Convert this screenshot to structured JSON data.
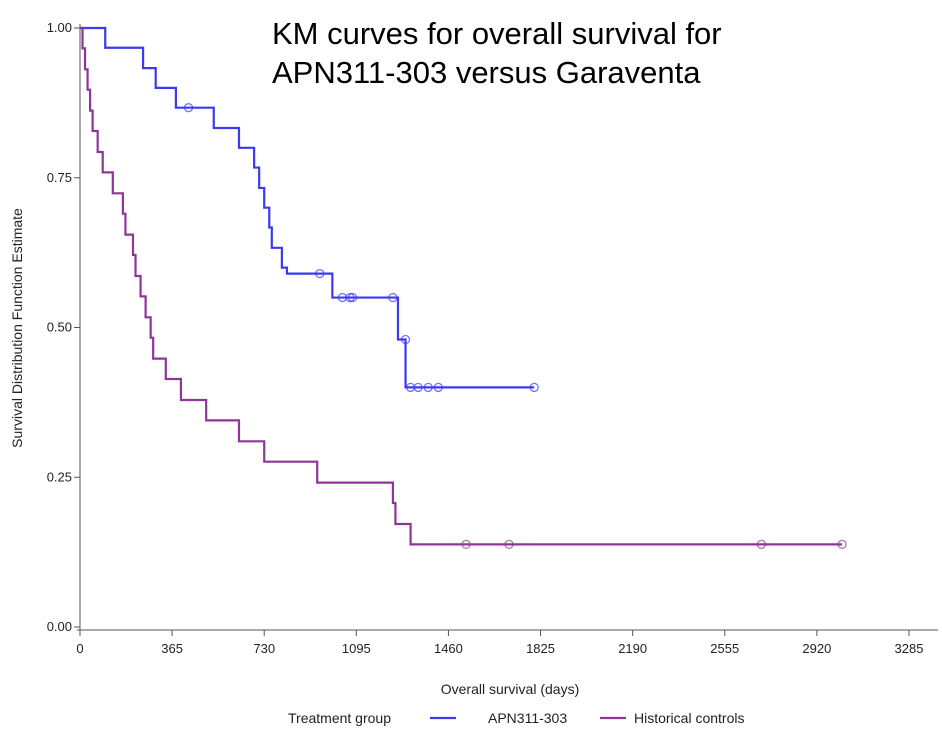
{
  "chart_data": {
    "type": "line",
    "subtype": "kaplan-meier step curve",
    "title_lines": [
      "KM curves for overall survival for",
      "APN311-303 versus Garaventa"
    ],
    "xlabel": "Overall survival (days)",
    "ylabel": "Survival Distribution Function Estimate",
    "xlim": [
      0,
      3400
    ],
    "ylim": [
      0,
      1.0
    ],
    "x_ticks": [
      0,
      365,
      730,
      1095,
      1460,
      1825,
      2190,
      2555,
      2920,
      3285
    ],
    "y_ticks": [
      0.0,
      0.25,
      0.5,
      0.75,
      1.0
    ],
    "y_tick_labels": [
      "0.00",
      "0.25",
      "0.50",
      "0.75",
      "1.00"
    ],
    "legend": {
      "title": "Treatment group",
      "placement": "bottom",
      "entries": [
        "APN311-303",
        "Historical controls"
      ]
    },
    "series": [
      {
        "name": "APN311-303",
        "color": "#3a3aef",
        "steps": [
          [
            0,
            1.0
          ],
          [
            100,
            0.967
          ],
          [
            250,
            0.933
          ],
          [
            300,
            0.9
          ],
          [
            380,
            0.867
          ],
          [
            530,
            0.833
          ],
          [
            630,
            0.8
          ],
          [
            690,
            0.767
          ],
          [
            710,
            0.733
          ],
          [
            730,
            0.7
          ],
          [
            750,
            0.667
          ],
          [
            760,
            0.633
          ],
          [
            800,
            0.6
          ],
          [
            820,
            0.59
          ],
          [
            1000,
            0.55
          ],
          [
            1260,
            0.48
          ],
          [
            1290,
            0.4
          ],
          [
            1800,
            0.4
          ]
        ],
        "censored": [
          [
            430,
            0.867
          ],
          [
            950,
            0.59
          ],
          [
            1040,
            0.55
          ],
          [
            1070,
            0.55
          ],
          [
            1080,
            0.55
          ],
          [
            1240,
            0.55
          ],
          [
            1290,
            0.48
          ],
          [
            1310,
            0.4
          ],
          [
            1340,
            0.4
          ],
          [
            1380,
            0.4
          ],
          [
            1420,
            0.4
          ],
          [
            1800,
            0.4
          ]
        ]
      },
      {
        "name": "Historical controls",
        "color": "#8e3598",
        "steps": [
          [
            0,
            1.0
          ],
          [
            10,
            0.966
          ],
          [
            20,
            0.931
          ],
          [
            30,
            0.897
          ],
          [
            40,
            0.862
          ],
          [
            50,
            0.828
          ],
          [
            70,
            0.793
          ],
          [
            90,
            0.759
          ],
          [
            130,
            0.724
          ],
          [
            170,
            0.69
          ],
          [
            180,
            0.655
          ],
          [
            210,
            0.621
          ],
          [
            220,
            0.586
          ],
          [
            240,
            0.552
          ],
          [
            260,
            0.517
          ],
          [
            280,
            0.483
          ],
          [
            290,
            0.448
          ],
          [
            340,
            0.414
          ],
          [
            400,
            0.379
          ],
          [
            500,
            0.345
          ],
          [
            630,
            0.31
          ],
          [
            730,
            0.276
          ],
          [
            940,
            0.241
          ],
          [
            1240,
            0.207
          ],
          [
            1250,
            0.172
          ],
          [
            1310,
            0.138
          ],
          [
            3020,
            0.138
          ]
        ],
        "censored": [
          [
            1530,
            0.138
          ],
          [
            1700,
            0.138
          ],
          [
            2700,
            0.138
          ],
          [
            3020,
            0.138
          ]
        ]
      }
    ]
  }
}
